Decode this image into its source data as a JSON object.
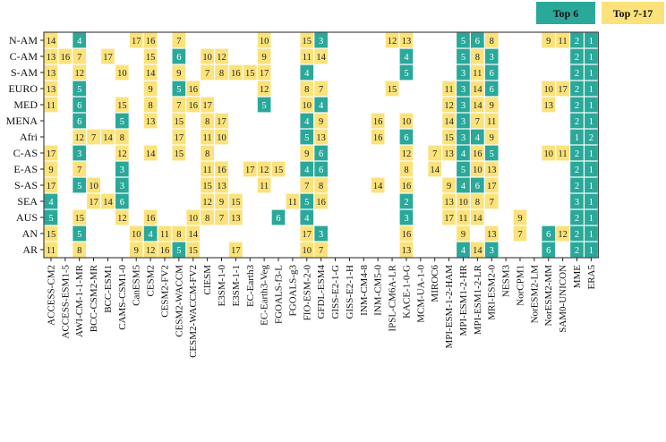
{
  "chart_data": {
    "type": "heatmap",
    "title": "",
    "xlabel": "",
    "ylabel": "",
    "colors": {
      "top6": "#2aa89a",
      "top7_17": "#fbe27a",
      "border": "#333333"
    },
    "legend": [
      {
        "key": "top6",
        "label": "Top 6"
      },
      {
        "key": "top7_17",
        "label": "Top 7-17"
      }
    ],
    "legend_position": "top-right",
    "rows": [
      "N-AM",
      "C-AM",
      "S-AM",
      "EURO",
      "MED",
      "MENA",
      "Afri",
      "C-AS",
      "E-AS",
      "S-AS",
      "SEA",
      "AUS",
      "AN",
      "AR"
    ],
    "columns": [
      "ACCESS-CM2",
      "ACCESS-ESM1-5",
      "AWI-CM-1-1-MR",
      "BCC-CSM2-MR",
      "BCC-ESM1",
      "CAMS-CSM1-0",
      "CanESM5",
      "CESM2",
      "CESM2-FV2",
      "CESM2-WACCM",
      "CESM2-WACCM-FV2",
      "CIESM",
      "E3SM-1-0",
      "E3SM-1-1",
      "EC-Earth3",
      "EC-Earth3-Veg",
      "FGOALS-f3-L",
      "FGOALS-g3",
      "FIO-ESM-2-0",
      "GFDL-ESM4",
      "GISS-E2-1-G",
      "GISS-E2-1-H",
      "INM-CM4-8",
      "INM-CM5-0",
      "IPSL-CM6A-LR",
      "KACE-1-0-G",
      "MCM-UA-1-0",
      "MIROC6",
      "MPI-ESM-1-2-HAM",
      "MPI-ESM1-2-HR",
      "MPI-ESM1-2-LR",
      "MRI-ESM2-0",
      "NESM3",
      "NorCPM1",
      "NorESM2-LM",
      "NorESM2-MM",
      "SAM0-UNICON",
      "MME",
      "ERA5"
    ],
    "cells": [
      [
        [
          0,
          14,
          "y"
        ],
        [
          2,
          4,
          "t"
        ],
        [
          6,
          17,
          "y"
        ],
        [
          7,
          16,
          "y"
        ],
        [
          9,
          7,
          "y"
        ],
        [
          15,
          10,
          "y"
        ],
        [
          18,
          15,
          "y"
        ],
        [
          19,
          3,
          "t"
        ],
        [
          24,
          12,
          "y"
        ],
        [
          25,
          13,
          "y"
        ],
        [
          29,
          5,
          "t"
        ],
        [
          30,
          6,
          "t"
        ],
        [
          31,
          8,
          "y"
        ],
        [
          35,
          9,
          "y"
        ],
        [
          36,
          11,
          "y"
        ],
        [
          37,
          2,
          "t"
        ],
        [
          38,
          1,
          "t"
        ]
      ],
      [
        [
          0,
          13,
          "y"
        ],
        [
          1,
          16,
          "y"
        ],
        [
          2,
          7,
          "y"
        ],
        [
          4,
          17,
          "y"
        ],
        [
          7,
          15,
          "y"
        ],
        [
          9,
          6,
          "t"
        ],
        [
          11,
          10,
          "y"
        ],
        [
          12,
          12,
          "y"
        ],
        [
          15,
          9,
          "y"
        ],
        [
          18,
          11,
          "y"
        ],
        [
          19,
          14,
          "y"
        ],
        [
          25,
          4,
          "t"
        ],
        [
          29,
          5,
          "t"
        ],
        [
          30,
          8,
          "y"
        ],
        [
          31,
          3,
          "t"
        ],
        [
          37,
          2,
          "t"
        ],
        [
          38,
          1,
          "t"
        ]
      ],
      [
        [
          0,
          13,
          "y"
        ],
        [
          2,
          12,
          "y"
        ],
        [
          5,
          10,
          "y"
        ],
        [
          7,
          14,
          "y"
        ],
        [
          9,
          9,
          "y"
        ],
        [
          11,
          7,
          "y"
        ],
        [
          12,
          8,
          "y"
        ],
        [
          13,
          16,
          "y"
        ],
        [
          14,
          15,
          "y"
        ],
        [
          15,
          17,
          "y"
        ],
        [
          18,
          4,
          "t"
        ],
        [
          25,
          5,
          "t"
        ],
        [
          29,
          3,
          "t"
        ],
        [
          30,
          11,
          "y"
        ],
        [
          31,
          6,
          "t"
        ],
        [
          37,
          2,
          "t"
        ],
        [
          38,
          1,
          "t"
        ]
      ],
      [
        [
          0,
          13,
          "y"
        ],
        [
          2,
          5,
          "t"
        ],
        [
          7,
          9,
          "y"
        ],
        [
          9,
          5,
          "t"
        ],
        [
          10,
          16,
          "y"
        ],
        [
          15,
          12,
          "y"
        ],
        [
          18,
          8,
          "y"
        ],
        [
          19,
          7,
          "y"
        ],
        [
          24,
          15,
          "y"
        ],
        [
          28,
          11,
          "y"
        ],
        [
          29,
          3,
          "t"
        ],
        [
          30,
          14,
          "y"
        ],
        [
          31,
          6,
          "t"
        ],
        [
          35,
          10,
          "y"
        ],
        [
          36,
          17,
          "y"
        ],
        [
          37,
          2,
          "t"
        ],
        [
          38,
          1,
          "t"
        ]
      ],
      [
        [
          0,
          11,
          "y"
        ],
        [
          2,
          6,
          "t"
        ],
        [
          5,
          15,
          "y"
        ],
        [
          7,
          8,
          "y"
        ],
        [
          9,
          7,
          "y"
        ],
        [
          10,
          16,
          "y"
        ],
        [
          11,
          17,
          "y"
        ],
        [
          15,
          5,
          "t"
        ],
        [
          18,
          10,
          "y"
        ],
        [
          19,
          4,
          "t"
        ],
        [
          28,
          12,
          "y"
        ],
        [
          29,
          3,
          "t"
        ],
        [
          30,
          14,
          "y"
        ],
        [
          31,
          9,
          "y"
        ],
        [
          35,
          13,
          "y"
        ],
        [
          37,
          2,
          "t"
        ],
        [
          38,
          1,
          "t"
        ]
      ],
      [
        [
          2,
          6,
          "t"
        ],
        [
          5,
          5,
          "t"
        ],
        [
          7,
          13,
          "y"
        ],
        [
          9,
          15,
          "y"
        ],
        [
          11,
          8,
          "y"
        ],
        [
          12,
          17,
          "y"
        ],
        [
          18,
          4,
          "t"
        ],
        [
          19,
          9,
          "y"
        ],
        [
          23,
          16,
          "y"
        ],
        [
          25,
          10,
          "y"
        ],
        [
          28,
          14,
          "y"
        ],
        [
          29,
          3,
          "t"
        ],
        [
          30,
          7,
          "y"
        ],
        [
          31,
          11,
          "y"
        ],
        [
          37,
          2,
          "t"
        ],
        [
          38,
          1,
          "t"
        ]
      ],
      [
        [
          2,
          12,
          "y"
        ],
        [
          3,
          7,
          "y"
        ],
        [
          4,
          14,
          "y"
        ],
        [
          5,
          8,
          "y"
        ],
        [
          9,
          17,
          "y"
        ],
        [
          11,
          11,
          "y"
        ],
        [
          12,
          10,
          "y"
        ],
        [
          18,
          5,
          "t"
        ],
        [
          19,
          13,
          "y"
        ],
        [
          23,
          16,
          "y"
        ],
        [
          25,
          6,
          "t"
        ],
        [
          28,
          15,
          "y"
        ],
        [
          29,
          3,
          "t"
        ],
        [
          30,
          4,
          "t"
        ],
        [
          31,
          9,
          "y"
        ],
        [
          37,
          1,
          "t"
        ],
        [
          38,
          2,
          "t"
        ]
      ],
      [
        [
          0,
          17,
          "y"
        ],
        [
          2,
          3,
          "t"
        ],
        [
          5,
          12,
          "y"
        ],
        [
          7,
          14,
          "y"
        ],
        [
          9,
          15,
          "y"
        ],
        [
          11,
          8,
          "y"
        ],
        [
          18,
          9,
          "y"
        ],
        [
          19,
          6,
          "t"
        ],
        [
          25,
          12,
          "y"
        ],
        [
          27,
          7,
          "y"
        ],
        [
          28,
          13,
          "y"
        ],
        [
          29,
          4,
          "t"
        ],
        [
          30,
          16,
          "y"
        ],
        [
          31,
          5,
          "t"
        ],
        [
          35,
          10,
          "y"
        ],
        [
          36,
          11,
          "y"
        ],
        [
          37,
          2,
          "t"
        ],
        [
          38,
          1,
          "t"
        ]
      ],
      [
        [
          0,
          9,
          "y"
        ],
        [
          2,
          7,
          "y"
        ],
        [
          5,
          3,
          "t"
        ],
        [
          11,
          11,
          "y"
        ],
        [
          12,
          16,
          "y"
        ],
        [
          14,
          17,
          "y"
        ],
        [
          15,
          12,
          "y"
        ],
        [
          16,
          15,
          "y"
        ],
        [
          18,
          4,
          "t"
        ],
        [
          19,
          6,
          "t"
        ],
        [
          25,
          8,
          "y"
        ],
        [
          27,
          14,
          "y"
        ],
        [
          29,
          5,
          "t"
        ],
        [
          30,
          10,
          "y"
        ],
        [
          31,
          13,
          "y"
        ],
        [
          37,
          2,
          "t"
        ],
        [
          38,
          1,
          "t"
        ]
      ],
      [
        [
          0,
          17,
          "y"
        ],
        [
          2,
          5,
          "t"
        ],
        [
          3,
          10,
          "y"
        ],
        [
          5,
          3,
          "t"
        ],
        [
          11,
          15,
          "y"
        ],
        [
          12,
          13,
          "y"
        ],
        [
          15,
          11,
          "y"
        ],
        [
          18,
          7,
          "y"
        ],
        [
          19,
          8,
          "y"
        ],
        [
          23,
          14,
          "y"
        ],
        [
          25,
          16,
          "y"
        ],
        [
          28,
          9,
          "y"
        ],
        [
          29,
          4,
          "t"
        ],
        [
          30,
          6,
          "t"
        ],
        [
          31,
          17,
          "y"
        ],
        [
          37,
          2,
          "t"
        ],
        [
          38,
          1,
          "t"
        ]
      ],
      [
        [
          0,
          4,
          "t"
        ],
        [
          3,
          17,
          "y"
        ],
        [
          4,
          14,
          "y"
        ],
        [
          5,
          6,
          "t"
        ],
        [
          11,
          12,
          "y"
        ],
        [
          12,
          9,
          "y"
        ],
        [
          13,
          15,
          "y"
        ],
        [
          17,
          11,
          "y"
        ],
        [
          18,
          5,
          "t"
        ],
        [
          19,
          16,
          "y"
        ],
        [
          25,
          2,
          "t"
        ],
        [
          28,
          13,
          "y"
        ],
        [
          29,
          10,
          "y"
        ],
        [
          30,
          8,
          "y"
        ],
        [
          31,
          7,
          "y"
        ],
        [
          37,
          3,
          "t"
        ],
        [
          38,
          1,
          "t"
        ]
      ],
      [
        [
          0,
          5,
          "t"
        ],
        [
          2,
          15,
          "y"
        ],
        [
          5,
          12,
          "y"
        ],
        [
          7,
          16,
          "y"
        ],
        [
          10,
          10,
          "y"
        ],
        [
          11,
          8,
          "y"
        ],
        [
          12,
          7,
          "y"
        ],
        [
          13,
          13,
          "y"
        ],
        [
          16,
          6,
          "t"
        ],
        [
          18,
          4,
          "t"
        ],
        [
          25,
          3,
          "t"
        ],
        [
          28,
          17,
          "y"
        ],
        [
          29,
          11,
          "y"
        ],
        [
          30,
          14,
          "y"
        ],
        [
          33,
          9,
          "y"
        ],
        [
          37,
          2,
          "t"
        ],
        [
          38,
          1,
          "t"
        ]
      ],
      [
        [
          0,
          15,
          "y"
        ],
        [
          2,
          5,
          "t"
        ],
        [
          6,
          10,
          "y"
        ],
        [
          7,
          4,
          "t"
        ],
        [
          8,
          11,
          "y"
        ],
        [
          9,
          8,
          "y"
        ],
        [
          10,
          14,
          "y"
        ],
        [
          18,
          17,
          "y"
        ],
        [
          19,
          3,
          "t"
        ],
        [
          25,
          16,
          "y"
        ],
        [
          29,
          9,
          "y"
        ],
        [
          31,
          13,
          "y"
        ],
        [
          33,
          7,
          "y"
        ],
        [
          35,
          6,
          "t"
        ],
        [
          36,
          12,
          "y"
        ],
        [
          37,
          2,
          "t"
        ],
        [
          38,
          1,
          "t"
        ]
      ],
      [
        [
          0,
          11,
          "y"
        ],
        [
          2,
          8,
          "y"
        ],
        [
          6,
          9,
          "y"
        ],
        [
          7,
          12,
          "y"
        ],
        [
          8,
          16,
          "y"
        ],
        [
          9,
          5,
          "t"
        ],
        [
          10,
          15,
          "y"
        ],
        [
          13,
          17,
          "y"
        ],
        [
          18,
          10,
          "y"
        ],
        [
          19,
          7,
          "y"
        ],
        [
          25,
          13,
          "y"
        ],
        [
          29,
          4,
          "t"
        ],
        [
          30,
          14,
          "y"
        ],
        [
          31,
          3,
          "t"
        ],
        [
          35,
          6,
          "t"
        ],
        [
          37,
          2,
          "t"
        ],
        [
          38,
          1,
          "t"
        ]
      ]
    ]
  }
}
